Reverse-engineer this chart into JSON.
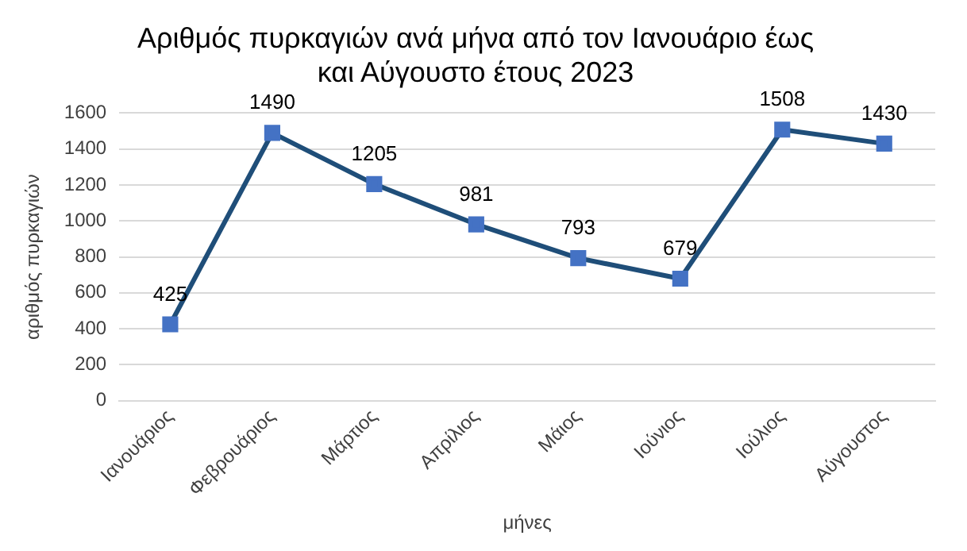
{
  "chart_data": {
    "type": "line",
    "title": "Αριθμός πυρκαγιών ανά μήνα από τον Ιανουάριο έως και Αύγουστο έτους 2023",
    "xlabel": "μήνες",
    "ylabel": "αριθμός πυρκαγιών",
    "categories": [
      "Ιανουάριος",
      "Φεβρουάριος",
      "Μάρτιος",
      "Απρίλιος",
      "Μάιος",
      "Ιούνιος",
      "Ιούλιος",
      "Αύγουστος"
    ],
    "series": [
      {
        "color": "#1f4e79",
        "values": [
          425,
          1490,
          1205,
          981,
          793,
          679,
          1508,
          1430
        ]
      }
    ],
    "ylim": [
      0,
      1600
    ],
    "yticks": [
      0,
      200,
      400,
      600,
      800,
      1000,
      1200,
      1400,
      1600
    ],
    "grid": "y",
    "legend": false,
    "marker": "square",
    "line_style": "solid",
    "data_labels": true
  }
}
